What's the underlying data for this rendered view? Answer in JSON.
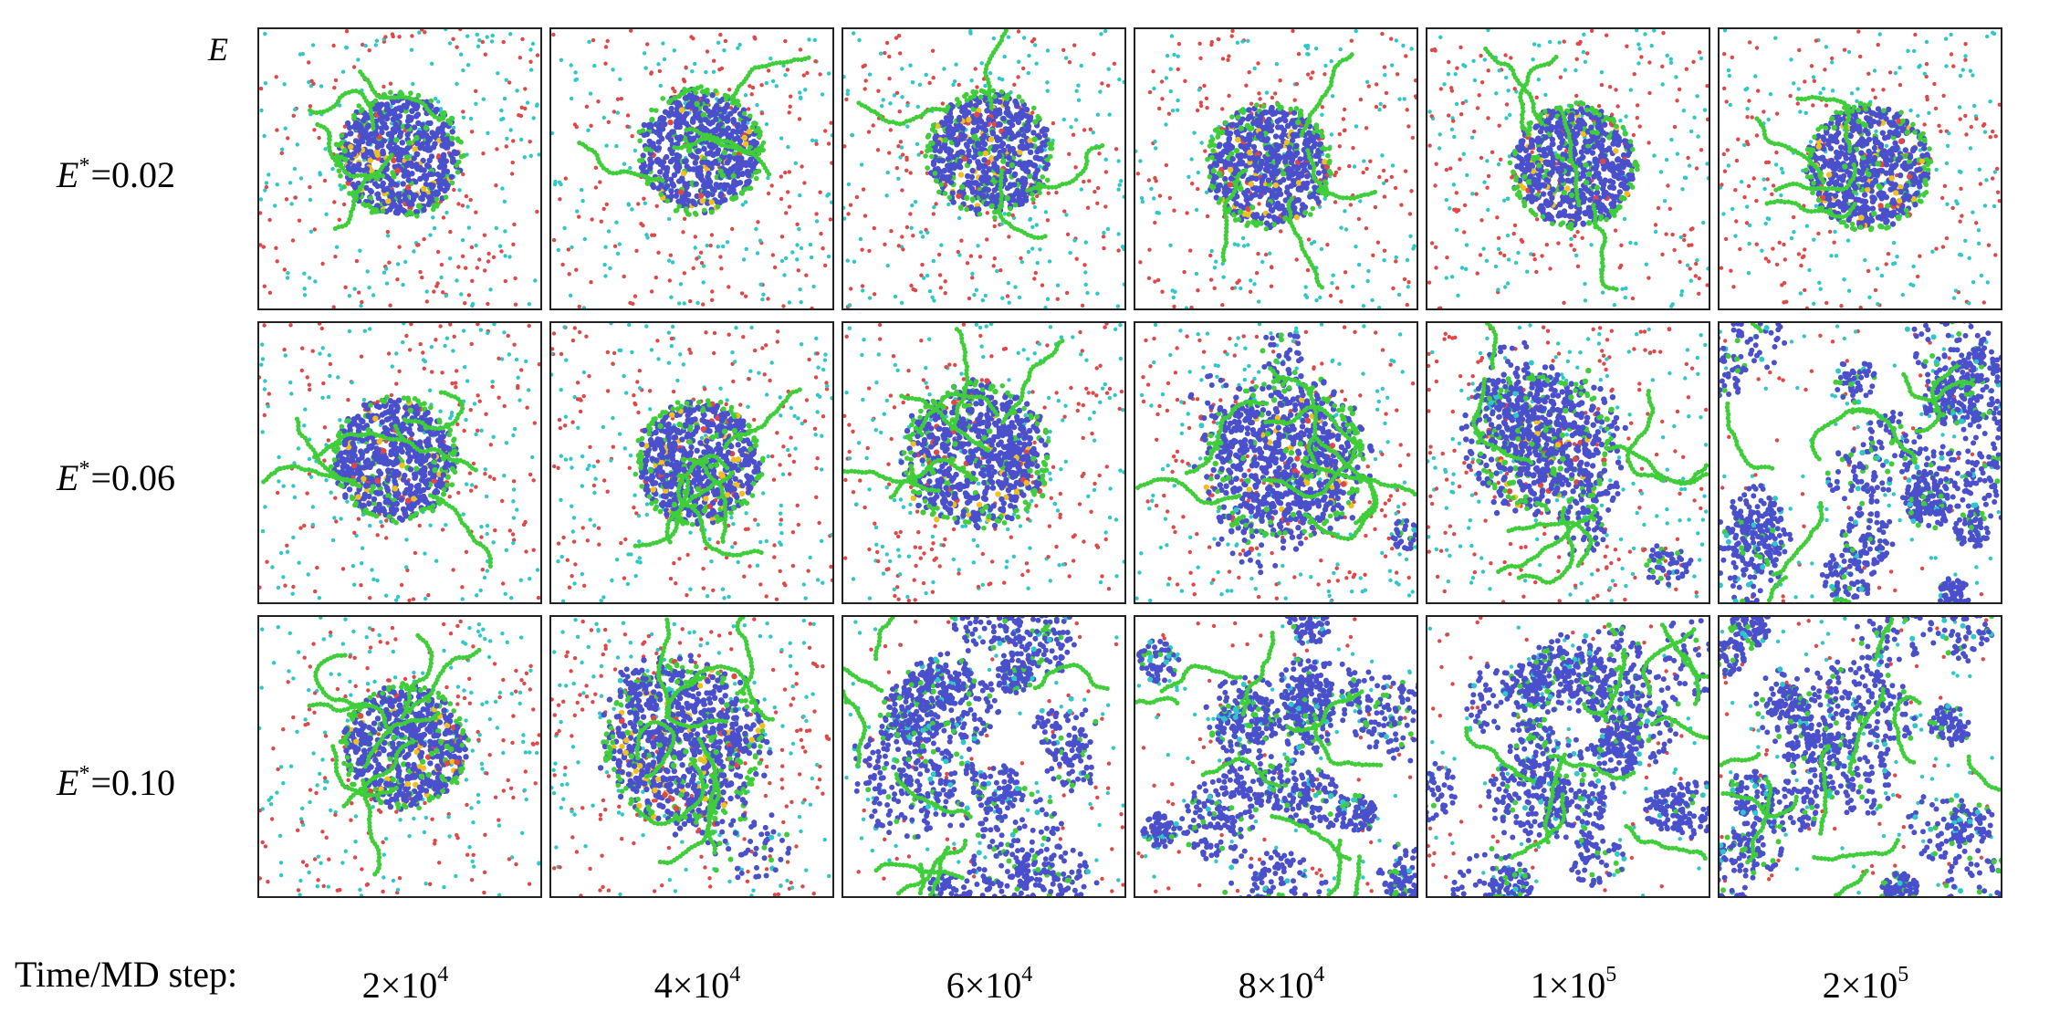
{
  "field_symbol": "E",
  "colors": {
    "solvent_a": "#e04848",
    "solvent_b": "#2ec8c8",
    "core": "#4a50cc",
    "chain": "#3fce3a",
    "accent": "#f0c020",
    "border": "#222222"
  },
  "rows": [
    {
      "label_prefix": "E",
      "label_sup": "*",
      "label_value": "=0.02",
      "states": [
        "intact-cluster",
        "intact-cluster",
        "intact-cluster",
        "intact-cluster",
        "intact-cluster",
        "intact-cluster"
      ]
    },
    {
      "label_prefix": "E",
      "label_sup": "*",
      "label_value": "=0.06",
      "states": [
        "intact-cluster",
        "intact-cluster",
        "roughened-cluster",
        "loosening-cluster",
        "fragmenting-cluster",
        "network"
      ]
    },
    {
      "label_prefix": "E",
      "label_sup": "*",
      "label_value": "=0.10",
      "states": [
        "intact-cluster",
        "dispersing-cluster",
        "network",
        "network",
        "network",
        "network"
      ]
    }
  ],
  "time_axis": {
    "title": "Time/MD step:",
    "steps": [
      {
        "mantissa": "2×10",
        "exp": "4"
      },
      {
        "mantissa": "4×10",
        "exp": "4"
      },
      {
        "mantissa": "6×10",
        "exp": "4"
      },
      {
        "mantissa": "8×10",
        "exp": "4"
      },
      {
        "mantissa": "1×10",
        "exp": "5"
      },
      {
        "mantissa": "2×10",
        "exp": "5"
      }
    ]
  }
}
